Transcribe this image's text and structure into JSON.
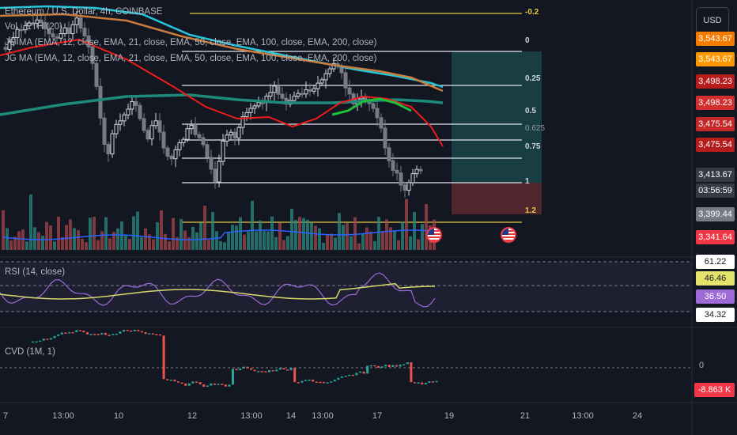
{
  "header": {
    "symbol_line": "Ethereum / U.S. Dollar, 4h, COINBASE",
    "vol_line": "Vol · ETH (20)",
    "ma_line_1": "JG MA (EMA, 12, close, EMA, 21, close, EMA, 50, close, EMA, 100, close, EMA, 200, close)",
    "ma_line_2": "JG MA (EMA, 12, close, EMA, 21, close, EMA, 50, close, EMA, 100, close, EMA, 200, close)"
  },
  "currency_button": "USD",
  "fib_labels": [
    "-0.2",
    "0",
    "0.25",
    "0.5",
    "0.625",
    "0.75",
    "1",
    "1.2"
  ],
  "price_tags": [
    {
      "text": "3,543.67",
      "bg": "#f57c00"
    },
    {
      "text": "3,543.67",
      "bg": "#ff9800"
    },
    {
      "text": "3,498.23",
      "bg": "#b71c1c"
    },
    {
      "text": "3,498.23",
      "bg": "#d32f2f"
    },
    {
      "text": "3,475.54",
      "bg": "#c62828"
    },
    {
      "text": "3,475.54",
      "bg": "#b71c1c"
    },
    {
      "text": "3,413.67",
      "bg": "#363a45"
    },
    {
      "text": "03:56:59",
      "bg": "#363a45"
    },
    {
      "text": "3,399.44",
      "bg": "#787b86"
    },
    {
      "text": "3,341.64",
      "bg": "#f23645"
    }
  ],
  "rsi": {
    "label": "RSI (14, close)",
    "tags": [
      {
        "text": "61.22",
        "bg": "#ffffff",
        "color": "#131722"
      },
      {
        "text": "46.46",
        "bg": "#e4e36b",
        "color": "#131722"
      },
      {
        "text": "36.50",
        "bg": "#9c6bd6",
        "color": "#ffffff"
      },
      {
        "text": "34.32",
        "bg": "#ffffff",
        "color": "#131722"
      }
    ]
  },
  "cvd": {
    "label": "CVD (1M, 1)",
    "zero_label": "0",
    "value_tag": "-8.863 K",
    "value_bg": "#f23645"
  },
  "x_axis": [
    "7",
    "13:00",
    "10",
    "12",
    "13:00",
    "14",
    "13:00",
    "17",
    "19",
    "21",
    "13:00",
    "24"
  ],
  "colors": {
    "up": "#26a69a",
    "down": "#ef5350",
    "ema12": "#ef1c1c",
    "ema21": "#26c6da",
    "ema50": "#ff8a3d",
    "ema100": "#1e8a7a",
    "rsi": "#9c6bd6",
    "rsi_ma": "#d4d96a"
  },
  "chart_data": {
    "type": "candlestick",
    "symbol": "Ethereum / U.S. Dollar",
    "interval": "4h",
    "exchange": "COINBASE",
    "fib_levels": [
      -0.2,
      0,
      0.25,
      0.5,
      0.625,
      0.75,
      1,
      1.2
    ],
    "fib_prices": [
      3543.67,
      3498.23,
      3475.54,
      3413.67,
      3399.44,
      3341.64
    ],
    "rsi_levels": [
      61.22,
      46.46,
      36.5,
      34.32
    ],
    "cvd_last": "-8.863 K"
  }
}
